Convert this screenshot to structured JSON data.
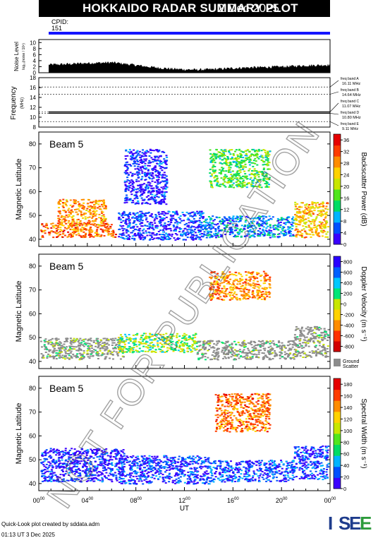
{
  "header": {
    "title": "HOKKAIDO RADAR SUMMARY PLOT",
    "date": "2 Dec 2025"
  },
  "cpid": {
    "label": "CPID:",
    "value": "151"
  },
  "colors": {
    "header_bg": "#000000",
    "cpid_bar": "#1515ff",
    "ground_scatter": "#8c8c8c",
    "noise_fill": "#000000"
  },
  "chart_data": [
    {
      "type": "area",
      "name": "noise",
      "ylabel": "Noise Level",
      "ylabel_sub": "log₁₀(noise / 10⁶)",
      "yticks": [
        "0",
        "2",
        "4",
        "6",
        "8",
        "10"
      ],
      "ylim": [
        0,
        11
      ],
      "x_hours": [
        0,
        1,
        2,
        3,
        4,
        5,
        6,
        7,
        8,
        9,
        10,
        11,
        12,
        13,
        14,
        15,
        16,
        17,
        18,
        19,
        20,
        21,
        22,
        23,
        24
      ],
      "values": [
        2.4,
        2.7,
        2.8,
        3.0,
        3.2,
        3.3,
        3.4,
        3.0,
        2.5,
        2.0,
        1.6,
        1.3,
        1.1,
        1.0,
        1.1,
        1.3,
        1.5,
        1.7,
        1.8,
        1.9,
        2.0,
        2.2,
        2.4,
        2.5,
        2.6
      ]
    },
    {
      "type": "line",
      "name": "frequency",
      "ylabel": "Frequency",
      "ylabel_unit": "(MHz)",
      "yticks": [
        "8",
        "10",
        "12",
        "14",
        "16",
        "18"
      ],
      "ylim": [
        8,
        18
      ],
      "bands": [
        {
          "label": "freq band A",
          "value": "16.11 MHz",
          "mhz": 16.11
        },
        {
          "label": "freq band B",
          "value": "14.64 MHz",
          "mhz": 14.64
        },
        {
          "label": "freq band C",
          "value": "11.07 MHz",
          "mhz": 11.07
        },
        {
          "label": "freq band D",
          "value": "10.80 MHz",
          "mhz": 10.8
        },
        {
          "label": "freq band E",
          "value": "9.11 MHz",
          "mhz": 9.11
        }
      ],
      "operating": [
        {
          "from": 0,
          "to": 24,
          "mhz": 10.8
        },
        {
          "from": 0,
          "to": 24,
          "mhz": 11.07
        }
      ]
    },
    {
      "type": "heatmap",
      "name": "power",
      "beam": "Beam  5",
      "ylabel": "Magnetic Latitude",
      "yticks": [
        "40",
        "50",
        "60",
        "70",
        "80"
      ],
      "ylim": [
        37,
        85
      ],
      "colorbar_label": "Backscatter Power (dB)",
      "colorbar_ticks": [
        "0",
        "4",
        "8",
        "12",
        "16",
        "20",
        "24",
        "28",
        "32",
        "36"
      ],
      "colorbar_range": [
        0,
        38
      ],
      "regions": [
        {
          "t": [
            0.1,
            6.3
          ],
          "lat": [
            41,
            47
          ],
          "v": 30
        },
        {
          "t": [
            1.5,
            5.5
          ],
          "lat": [
            46,
            57
          ],
          "v": 28
        },
        {
          "t": [
            6.5,
            13.5
          ],
          "lat": [
            40,
            52
          ],
          "v": 4
        },
        {
          "t": [
            13.5,
            21.0
          ],
          "lat": [
            41,
            50
          ],
          "v": 8
        },
        {
          "t": [
            14.0,
            19.0
          ],
          "lat": [
            62,
            78
          ],
          "v": 16
        },
        {
          "t": [
            21.0,
            23.8
          ],
          "lat": [
            41,
            56
          ],
          "v": 26
        },
        {
          "t": [
            7.0,
            10.5
          ],
          "lat": [
            55,
            78
          ],
          "v": 3
        }
      ]
    },
    {
      "type": "heatmap",
      "name": "velocity",
      "beam": "Beam  5",
      "ylabel": "Magnetic Latitude",
      "yticks": [
        "40",
        "50",
        "60",
        "70",
        "80"
      ],
      "ylim": [
        37,
        85
      ],
      "colorbar_label": "Doppler Velocity (m s⁻¹)",
      "colorbar_ticks": [
        "800",
        "600",
        "400",
        "200",
        "0",
        "-200",
        "-400",
        "-600",
        "-800"
      ],
      "colorbar_range": [
        -900,
        900
      ],
      "ground_label": "Ground",
      "ground_label2": "Scatter",
      "regions": [
        {
          "t": [
            0.1,
            7.0
          ],
          "lat": [
            41,
            50
          ],
          "v": "gs"
        },
        {
          "t": [
            6.5,
            13.0
          ],
          "lat": [
            44,
            52
          ],
          "v": 100
        },
        {
          "t": [
            13.0,
            21.0
          ],
          "lat": [
            41,
            49
          ],
          "v": "gs"
        },
        {
          "t": [
            14.0,
            19.0
          ],
          "lat": [
            66,
            78
          ],
          "v": -400
        },
        {
          "t": [
            21.0,
            23.8
          ],
          "lat": [
            42,
            55
          ],
          "v": "gs"
        }
      ]
    },
    {
      "type": "heatmap",
      "name": "width",
      "beam": "Beam  5",
      "ylabel": "Magnetic Latitude",
      "yticks": [
        "40",
        "50",
        "60",
        "70",
        "80"
      ],
      "ylim": [
        37,
        85
      ],
      "colorbar_label": "Spectral Width (m s⁻¹)",
      "colorbar_ticks": [
        "0",
        "20",
        "40",
        "60",
        "80",
        "100",
        "120",
        "140",
        "160",
        "180"
      ],
      "colorbar_range": [
        0,
        190
      ],
      "regions": [
        {
          "t": [
            0.1,
            7.0
          ],
          "lat": [
            41,
            55
          ],
          "v": 15
        },
        {
          "t": [
            6.5,
            14.0
          ],
          "lat": [
            40,
            52
          ],
          "v": 20
        },
        {
          "t": [
            14.0,
            21.0
          ],
          "lat": [
            41,
            50
          ],
          "v": 25
        },
        {
          "t": [
            14.5,
            19.0
          ],
          "lat": [
            62,
            78
          ],
          "v": 150
        },
        {
          "t": [
            21.0,
            23.8
          ],
          "lat": [
            42,
            56
          ],
          "v": 20
        }
      ]
    }
  ],
  "xaxis": {
    "ticks": [
      "00",
      "04",
      "08",
      "12",
      "16",
      "20",
      "00"
    ],
    "tick_sup": "00",
    "label": "UT",
    "range_hours": [
      0,
      24
    ]
  },
  "footer": {
    "credit": "Quick-Look plot created by sddata.adm",
    "created": "01:13 UT  3 Dec 2025",
    "logo": "ISEE"
  },
  "watermark": "NOT FOR PUBLICATION"
}
